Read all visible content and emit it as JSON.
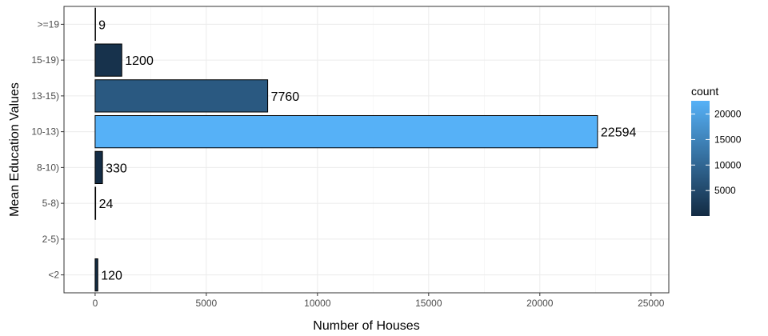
{
  "chart_data": {
    "type": "bar",
    "orientation": "horizontal",
    "categories": [
      "<2",
      "2-5)",
      "5-8)",
      "8-10)",
      "10-13)",
      "13-15)",
      "15-19)",
      ">=19"
    ],
    "values": [
      120,
      null,
      24,
      330,
      22594,
      7760,
      1200,
      9
    ],
    "data_labels": [
      "120",
      "",
      "24",
      "330",
      "22594",
      "7760",
      "1200",
      "9"
    ],
    "xlabel": "Number of Houses",
    "ylabel": "Mean Education Values",
    "xlim": [
      -1400,
      25800
    ],
    "x_ticks": [
      0,
      5000,
      10000,
      15000,
      20000,
      25000
    ],
    "x_tick_labels": [
      "0",
      "5000",
      "10000",
      "15000",
      "20000",
      "25000"
    ],
    "grid": true,
    "legend": {
      "title": "count",
      "position": "right",
      "range": [
        9,
        22594
      ],
      "ticks": [
        5000,
        10000,
        15000,
        20000
      ],
      "tick_labels": [
        "5000",
        "10000",
        "15000",
        "20000"
      ],
      "color_low": "#132B43",
      "color_high": "#56B1F7"
    }
  }
}
